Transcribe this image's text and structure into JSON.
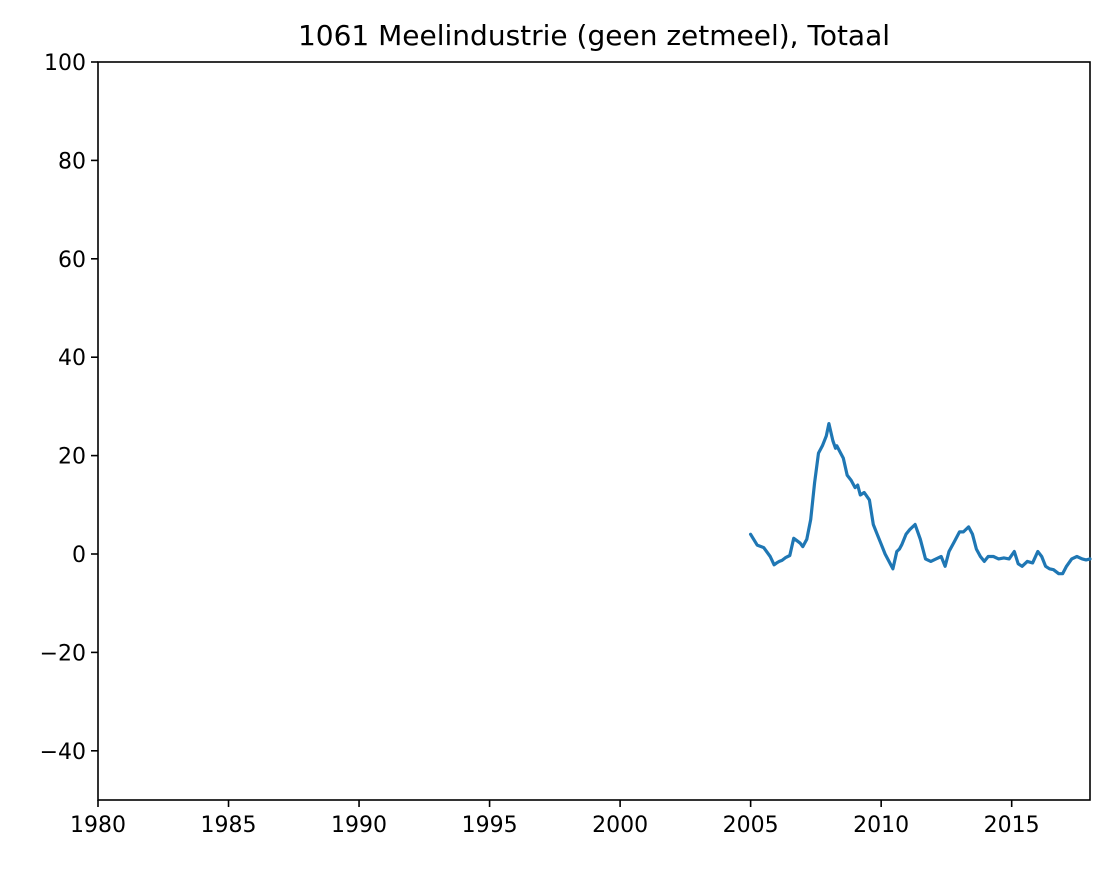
{
  "chart_data": {
    "type": "line",
    "title": "1061 Meelindustrie (geen zetmeel), Totaal",
    "xlabel": "",
    "ylabel": "",
    "xlim": [
      1980,
      2018
    ],
    "ylim": [
      -50,
      100
    ],
    "xticks": [
      1980,
      1985,
      1990,
      1995,
      2000,
      2005,
      2010,
      2015
    ],
    "yticks": [
      -40,
      -20,
      0,
      20,
      40,
      60,
      80,
      100
    ],
    "xtick_labels": [
      "1980",
      "1985",
      "1990",
      "1995",
      "2000",
      "2005",
      "2010",
      "2015"
    ],
    "ytick_labels": [
      "−40",
      "−20",
      "0",
      "20",
      "40",
      "60",
      "80",
      "100"
    ],
    "grid": false,
    "series": [
      {
        "color": "#1f77b4",
        "x": [
          2005.0,
          2005.25,
          2005.5,
          2005.75,
          2005.9,
          2006.0,
          2006.1,
          2006.2,
          2006.35,
          2006.5,
          2006.65,
          2006.8,
          2006.9,
          2007.0,
          2007.15,
          2007.3,
          2007.45,
          2007.6,
          2007.75,
          2007.9,
          2008.0,
          2008.15,
          2008.25,
          2008.3,
          2008.4,
          2008.55,
          2008.7,
          2008.85,
          2009.0,
          2009.1,
          2009.2,
          2009.35,
          2009.55,
          2009.7,
          2009.85,
          2010.0,
          2010.15,
          2010.3,
          2010.45,
          2010.6,
          2010.7,
          2010.8,
          2010.95,
          2011.1,
          2011.3,
          2011.5,
          2011.7,
          2011.9,
          2012.1,
          2012.3,
          2012.45,
          2012.6,
          2012.8,
          2013.0,
          2013.15,
          2013.35,
          2013.5,
          2013.65,
          2013.8,
          2013.95,
          2014.1,
          2014.3,
          2014.5,
          2014.7,
          2014.9,
          2015.1,
          2015.25,
          2015.4,
          2015.6,
          2015.8,
          2016.0,
          2016.15,
          2016.3,
          2016.45,
          2016.6,
          2016.8,
          2016.95,
          2017.1,
          2017.3,
          2017.5,
          2017.7,
          2017.85,
          2018.0
        ],
        "values": [
          4.0,
          1.8,
          1.3,
          -0.5,
          -2.2,
          -1.8,
          -1.5,
          -1.3,
          -0.7,
          -0.3,
          3.2,
          2.6,
          2.2,
          1.5,
          3.0,
          7.0,
          14.5,
          20.5,
          22.0,
          24.0,
          26.5,
          23.0,
          21.5,
          22.0,
          21.0,
          19.5,
          16.0,
          15.0,
          13.5,
          14.0,
          12.0,
          12.5,
          11.0,
          6.0,
          4.0,
          2.0,
          0.0,
          -1.5,
          -3.0,
          0.5,
          1.0,
          2.0,
          4.0,
          5.0,
          6.0,
          3.0,
          -1.0,
          -1.5,
          -1.0,
          -0.5,
          -2.5,
          0.5,
          2.5,
          4.5,
          4.5,
          5.5,
          4.0,
          1.0,
          -0.5,
          -1.5,
          -0.5,
          -0.5,
          -1.0,
          -0.8,
          -1.0,
          0.5,
          -2.0,
          -2.5,
          -1.5,
          -1.8,
          0.5,
          -0.5,
          -2.5,
          -3.0,
          -3.2,
          -4.0,
          -4.0,
          -2.5,
          -1.0,
          -0.5,
          -1.0,
          -1.2,
          -1.0
        ]
      }
    ]
  }
}
